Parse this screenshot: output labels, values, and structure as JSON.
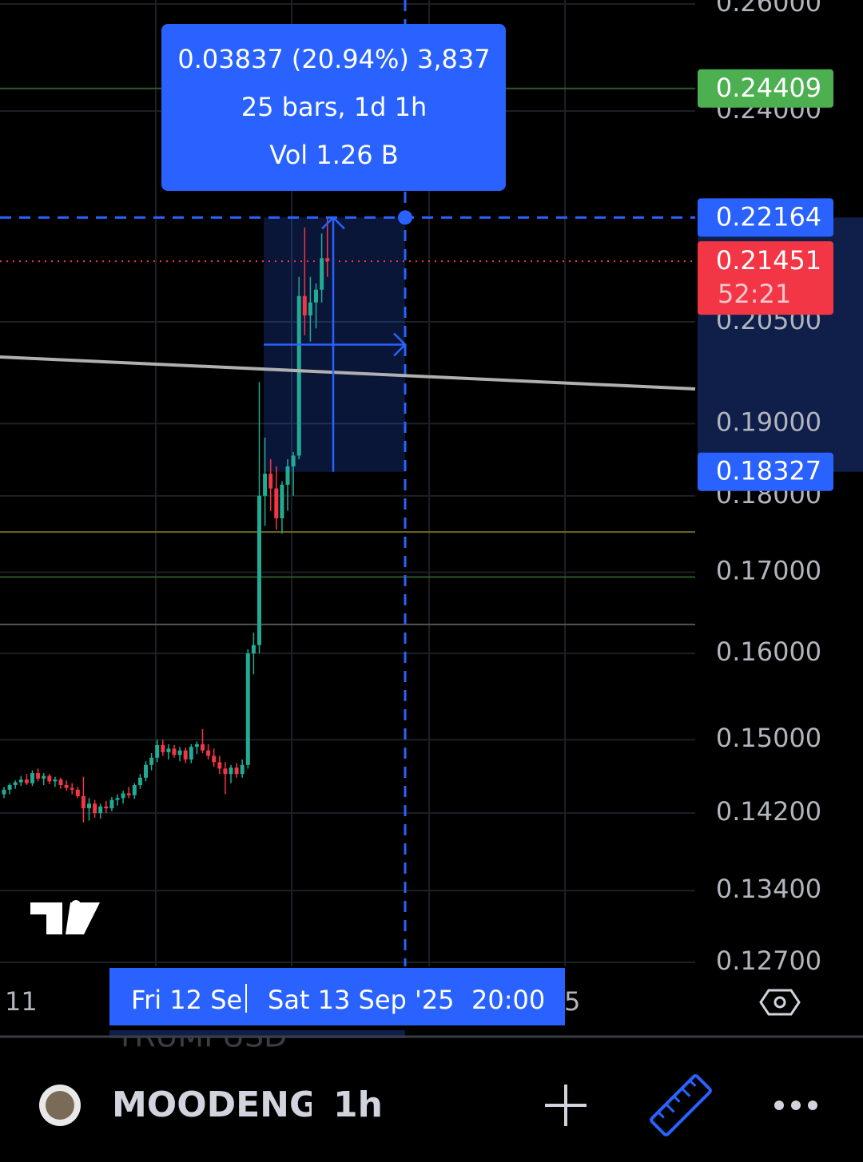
{
  "tooltip": {
    "line1": "0.03837 (20.94%) 3,837",
    "line2": "25 bars, 1d 1h",
    "line3": "Vol 1.26 B"
  },
  "price_axis": {
    "log": true,
    "ylim": [
      0.127,
      0.26
    ],
    "ticks": [
      {
        "value": 0.26,
        "label": "0.26000"
      },
      {
        "value": 0.24,
        "label": "0.24000"
      },
      {
        "value": 0.205,
        "label": "0.20500"
      },
      {
        "value": 0.19,
        "label": "0.19000"
      },
      {
        "value": 0.18,
        "label": "0.18000"
      },
      {
        "value": 0.17,
        "label": "0.17000"
      },
      {
        "value": 0.16,
        "label": "0.16000"
      },
      {
        "value": 0.15,
        "label": "0.15000"
      },
      {
        "value": 0.142,
        "label": "0.14200"
      },
      {
        "value": 0.134,
        "label": "0.13400"
      },
      {
        "value": 0.127,
        "label": "0.12700"
      }
    ]
  },
  "badges": [
    {
      "value": 0.24409,
      "label": "0.24409",
      "color": "#4caf50"
    },
    {
      "value": 0.22164,
      "label": "0.22164",
      "color": "#2962ff"
    },
    {
      "value": 0.21451,
      "label": "0.21451",
      "sub": "52:21",
      "color": "#f23645"
    },
    {
      "value": 0.18327,
      "label": "0.18327",
      "color": "#2962ff"
    }
  ],
  "level_lines": [
    {
      "value": 0.24409,
      "color": "#2e5a2a"
    },
    {
      "value": 0.1752,
      "color": "#6b6b1f"
    },
    {
      "value": 0.1694,
      "color": "#2e5a2a"
    },
    {
      "value": 0.1635,
      "color": "#555555"
    }
  ],
  "candles": [
    [
      0.144,
      0.1448,
      0.1436,
      0.1445
    ],
    [
      0.1445,
      0.1452,
      0.144,
      0.145
    ],
    [
      0.145,
      0.1455,
      0.1446,
      0.1453
    ],
    [
      0.1453,
      0.146,
      0.1449,
      0.1456
    ],
    [
      0.1456,
      0.1462,
      0.145,
      0.1452
    ],
    [
      0.1452,
      0.1466,
      0.1449,
      0.1463
    ],
    [
      0.1463,
      0.1468,
      0.1454,
      0.1457
    ],
    [
      0.1457,
      0.1463,
      0.145,
      0.146
    ],
    [
      0.146,
      0.1462,
      0.1451,
      0.1454
    ],
    [
      0.1454,
      0.1459,
      0.1448,
      0.1456
    ],
    [
      0.1456,
      0.1458,
      0.1446,
      0.145
    ],
    [
      0.145,
      0.1455,
      0.1444,
      0.1447
    ],
    [
      0.1447,
      0.1452,
      0.144,
      0.1445
    ],
    [
      0.1445,
      0.1448,
      0.1436,
      0.1438
    ],
    [
      0.1438,
      0.1459,
      0.141,
      0.1425
    ],
    [
      0.1425,
      0.1436,
      0.1412,
      0.143
    ],
    [
      0.143,
      0.1434,
      0.1415,
      0.142
    ],
    [
      0.142,
      0.143,
      0.1414,
      0.1427
    ],
    [
      0.1427,
      0.1433,
      0.142,
      0.1425
    ],
    [
      0.1425,
      0.1437,
      0.1422,
      0.1434
    ],
    [
      0.1434,
      0.144,
      0.1428,
      0.1436
    ],
    [
      0.1436,
      0.1444,
      0.143,
      0.1441
    ],
    [
      0.1441,
      0.1448,
      0.1436,
      0.1439
    ],
    [
      0.1439,
      0.1452,
      0.1435,
      0.145
    ],
    [
      0.145,
      0.1462,
      0.1446,
      0.1458
    ],
    [
      0.1458,
      0.1476,
      0.1454,
      0.1472
    ],
    [
      0.1472,
      0.1485,
      0.1466,
      0.148
    ],
    [
      0.148,
      0.15,
      0.1475,
      0.1494
    ],
    [
      0.1494,
      0.15,
      0.1482,
      0.1486
    ],
    [
      0.1486,
      0.1495,
      0.1478,
      0.149
    ],
    [
      0.149,
      0.1494,
      0.148,
      0.1483
    ],
    [
      0.1483,
      0.1492,
      0.1476,
      0.1488
    ],
    [
      0.1488,
      0.1491,
      0.1474,
      0.1478
    ],
    [
      0.1478,
      0.1495,
      0.1474,
      0.1492
    ],
    [
      0.1492,
      0.1498,
      0.1484,
      0.1495
    ],
    [
      0.1495,
      0.1512,
      0.1485,
      0.1488
    ],
    [
      0.1488,
      0.1495,
      0.1478,
      0.1482
    ],
    [
      0.1482,
      0.149,
      0.147,
      0.1475
    ],
    [
      0.1475,
      0.1482,
      0.1462,
      0.1468
    ],
    [
      0.1468,
      0.1475,
      0.144,
      0.1462
    ],
    [
      0.1462,
      0.1472,
      0.1452,
      0.1469
    ],
    [
      0.1469,
      0.1474,
      0.1458,
      0.1462
    ],
    [
      0.1462,
      0.1478,
      0.1458,
      0.1472
    ],
    [
      0.1472,
      0.1605,
      0.1468,
      0.16
    ],
    [
      0.16,
      0.1625,
      0.1575,
      0.161
    ],
    [
      0.161,
      0.196,
      0.16,
      0.18
    ],
    [
      0.18,
      0.188,
      0.176,
      0.183
    ],
    [
      0.183,
      0.185,
      0.178,
      0.181
    ],
    [
      0.181,
      0.184,
      0.1755,
      0.177
    ],
    [
      0.177,
      0.182,
      0.175,
      0.1815
    ],
    [
      0.1815,
      0.185,
      0.178,
      0.184
    ],
    [
      0.184,
      0.186,
      0.18,
      0.1855
    ],
    [
      0.1855,
      0.212,
      0.185,
      0.209
    ],
    [
      0.209,
      0.22,
      0.203,
      0.206
    ],
    [
      0.206,
      0.212,
      0.202,
      0.208
    ],
    [
      0.208,
      0.211,
      0.204,
      0.21
    ],
    [
      0.21,
      0.219,
      0.208,
      0.215
    ],
    [
      0.215,
      0.2216,
      0.212,
      0.2145
    ]
  ],
  "time_axis": {
    "left_label": "11",
    "partial_label": "Fri 12 Se",
    "cursor_label": "Sat 13 Sep '25",
    "cursor_time": "20:00",
    "right_label": "5"
  },
  "toolbar": {
    "symbol": "MOODENGUSD",
    "interval": "1h",
    "behind_symbol": "TRUMPUSD"
  }
}
